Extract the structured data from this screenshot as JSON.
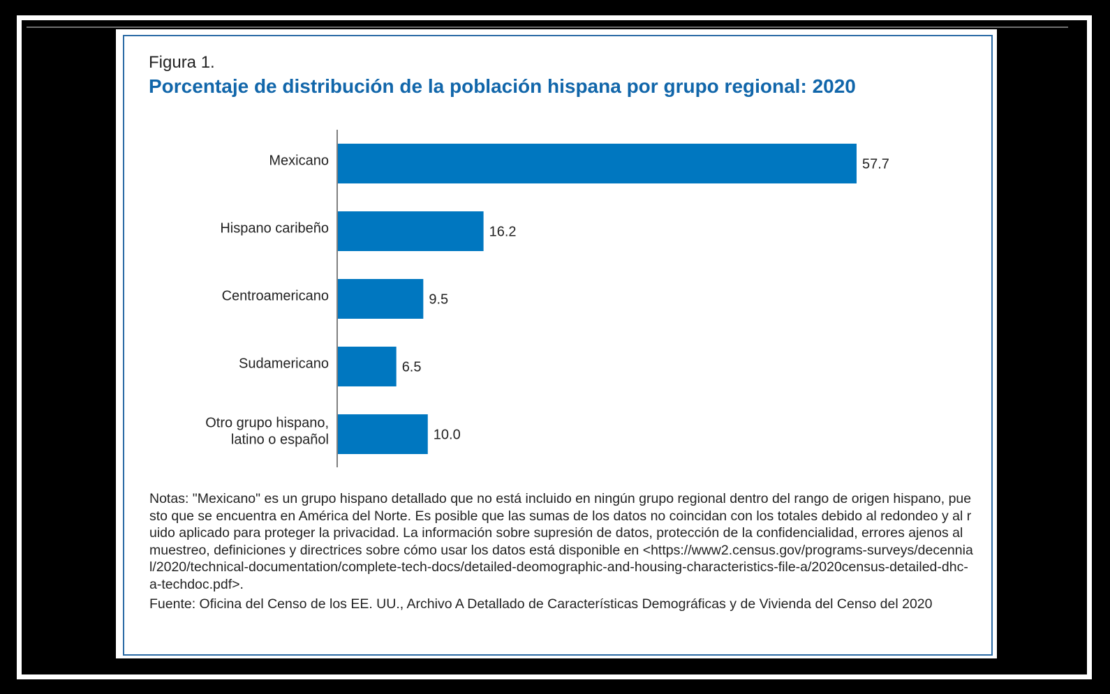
{
  "figure_label": "Figura 1.",
  "title": "Porcentaje de distribución de la población hispana por grupo regional: 2020",
  "colors": {
    "bar": "#0077c0",
    "title": "#1166aa",
    "frame": "#2a6aa5"
  },
  "chart_data": {
    "type": "bar",
    "orientation": "horizontal",
    "categories": [
      [
        "Mexicano"
      ],
      [
        "Hispano caribeño"
      ],
      [
        "Centroamericano"
      ],
      [
        "Sudamericano"
      ],
      [
        "Otro grupo hispano,",
        "latino o español"
      ]
    ],
    "values": [
      57.7,
      16.2,
      9.5,
      6.5,
      10.0
    ],
    "value_labels": [
      "57.7",
      "16.2",
      "9.5",
      "6.5",
      "10.0"
    ],
    "xlim": [
      0,
      57.7
    ],
    "grid": false,
    "legend": "none"
  },
  "notes": "Notas: \"Mexicano\" es un grupo hispano detallado que no está incluido en ningún grupo regional dentro del rango de origen hispano, puesto que se encuentra en América del Norte. Es posible que las sumas de los datos no coincidan con los totales debido al redondeo y al ruido aplicado para proteger la privacidad. La información sobre supresión de datos, protección de la confidencialidad, errores ajenos al muestreo, definiciones y directrices sobre cómo usar los datos está disponible en <https://www2.census.gov/programs-surveys/decennial/2020/technical-documentation/complete-tech-docs/detailed-deomographic-and-housing-characteristics-file-a/2020census-detailed-dhc-a-techdoc.pdf>.",
  "source": "Fuente: Oficina del Censo de los EE. UU., Archivo A Detallado de Características Demográficas y de Vivienda del Censo del 2020"
}
